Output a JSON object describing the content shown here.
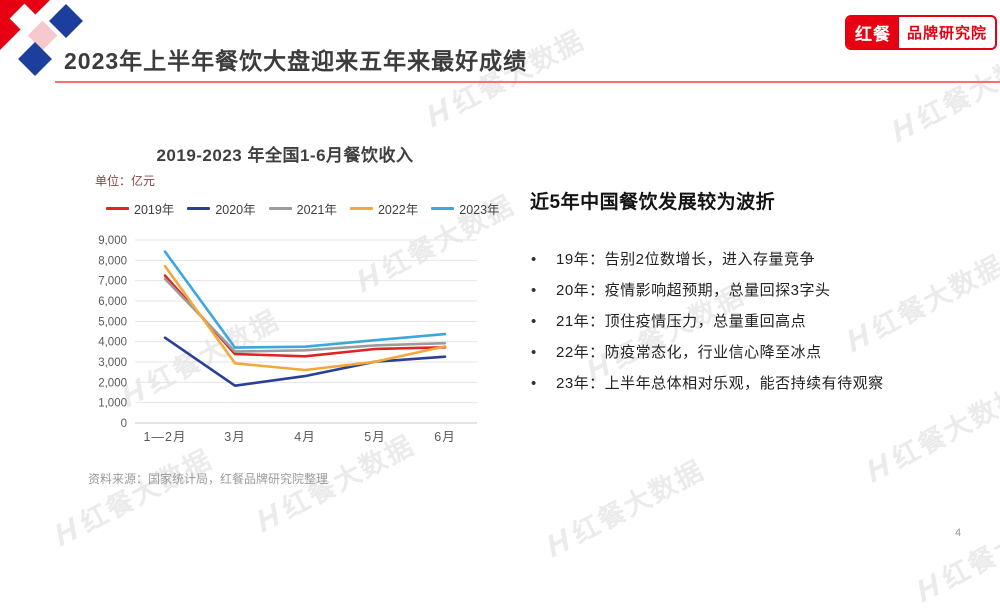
{
  "header": {
    "title": "2023年上半年餐饮大盘迎来五年来最好成绩",
    "brand_badge": {
      "left_text": "红餐",
      "right_text": "品牌研究院"
    }
  },
  "chart": {
    "title": "2019-2023 年全国1-6月餐饮收入",
    "unit_label": "单位：亿元",
    "source": "资料来源：国家统计局，红餐品牌研究院整理"
  },
  "chart_data": {
    "type": "line",
    "title": "2019-2023 年全国1-6月餐饮收入",
    "unit": "亿元",
    "categories": [
      "1—2月",
      "3月",
      "4月",
      "5月",
      "6月"
    ],
    "series": [
      {
        "name": "2019年",
        "color": "#df2422",
        "values": [
          7251,
          3393,
          3281,
          3637,
          3723
        ]
      },
      {
        "name": "2020年",
        "color": "#2b3f96",
        "values": [
          4194,
          1832,
          2307,
          3013,
          3262
        ]
      },
      {
        "name": "2021年",
        "color": "#9c9c9c",
        "values": [
          7085,
          3511,
          3576,
          3816,
          3923
        ]
      },
      {
        "name": "2022年",
        "color": "#f2a93b",
        "values": [
          7718,
          2935,
          2609,
          3012,
          3766
        ]
      },
      {
        "name": "2023年",
        "color": "#3ba7dc",
        "values": [
          8429,
          3707,
          3751,
          4070,
          4371
        ]
      }
    ],
    "ylim": [
      0,
      9000
    ],
    "ytick_labels": [
      "0",
      "1,000",
      "2,000",
      "3,000",
      "4,000",
      "5,000",
      "6,000",
      "7,000",
      "8,000",
      "9,000"
    ],
    "grid": true,
    "legend_position": "top"
  },
  "right_panel": {
    "heading": "近5年中国餐饮发展较为波折",
    "bullets": [
      "19年：告别2位数增长，进入存量竞争",
      "20年：疫情影响超预期，总量回探3字头",
      "21年：顶住疫情压力，总量重回高点",
      "22年：防疫常态化，行业信心降至冰点",
      "23年：上半年总体相对乐观，能否持续有待观察"
    ]
  },
  "watermark": {
    "text": "红餐大数据",
    "h_glyph": "H"
  },
  "footer": {
    "page_number": "4"
  },
  "colors": {
    "accent_red": "#e60012",
    "logo_blue": "#1c3f9d",
    "logo_pink": "#f6c9cc",
    "title_underline": "#f4716f"
  }
}
